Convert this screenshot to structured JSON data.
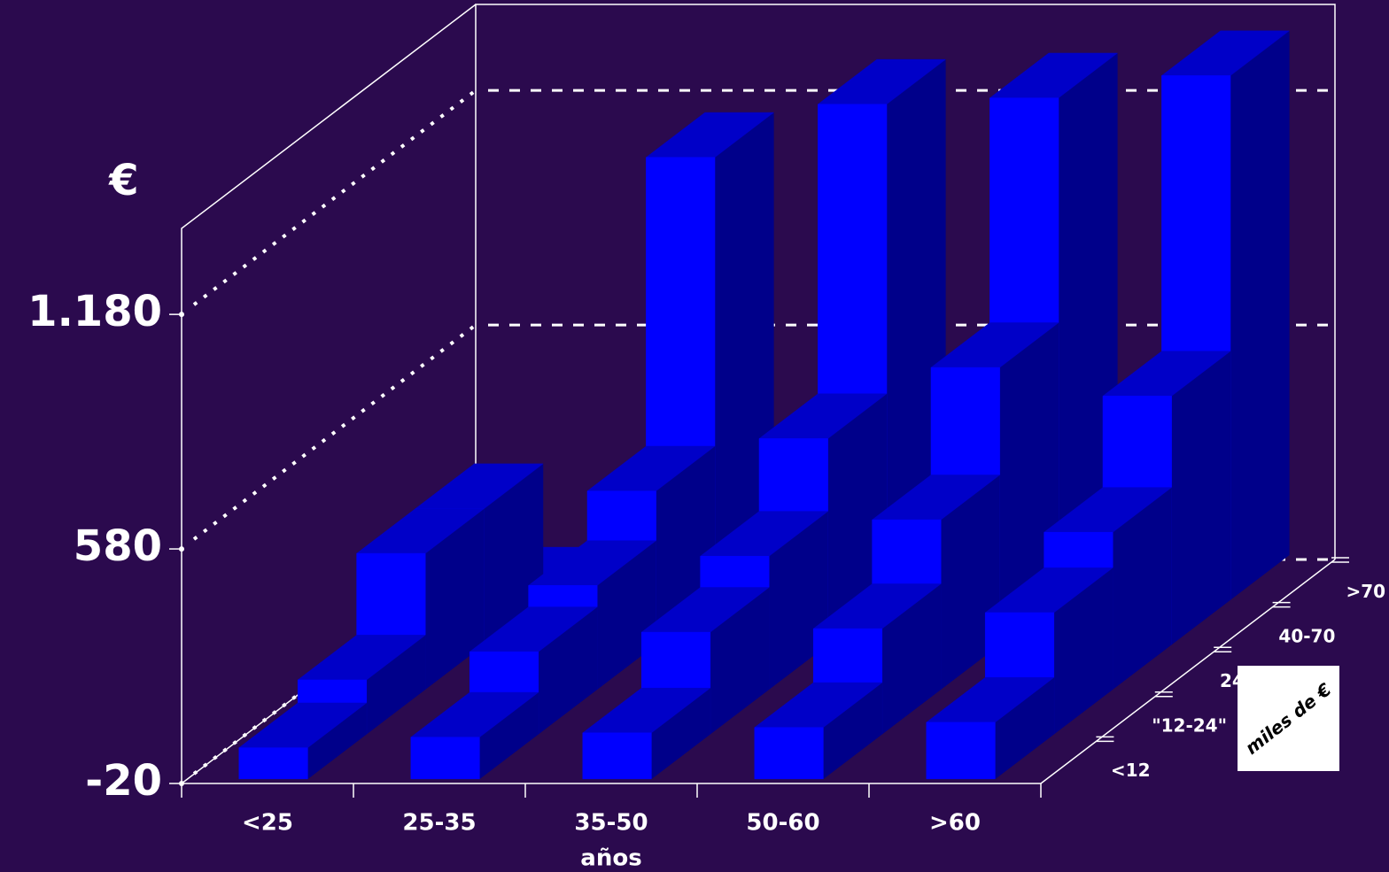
{
  "chart_data": {
    "type": "bar3d",
    "y_label": "€",
    "x_label": "años",
    "depth_label": "miles de €",
    "categories": [
      "<25",
      "25-35",
      "35-50",
      "50-60",
      ">60"
    ],
    "series": [
      {
        "name": "<12",
        "color": "#0000ff",
        "values": [
          60,
          87,
          98,
          112,
          125
        ]
      },
      {
        "name": "\"12-24\"",
        "color": "#0000ff",
        "values": [
          119,
          191,
          241,
          250,
          291
        ]
      },
      {
        "name": "24-40",
        "color": "#0000ff",
        "values": [
          328,
          246,
          321,
          414,
          382
        ]
      },
      {
        "name": "40-70",
        "color": "#0000ff",
        "values": [
          328,
          373,
          507,
          689,
          616
        ]
      },
      {
        "name": ">70",
        "color": "#0000ff",
        "values": [
          0,
          1112,
          1248,
          1264,
          1321
        ]
      }
    ],
    "ylim": [
      -20,
      1400
    ],
    "yticks": [
      -20,
      580,
      {
        "value": 1180,
        "label": "1.180"
      }
    ],
    "grid": true
  }
}
